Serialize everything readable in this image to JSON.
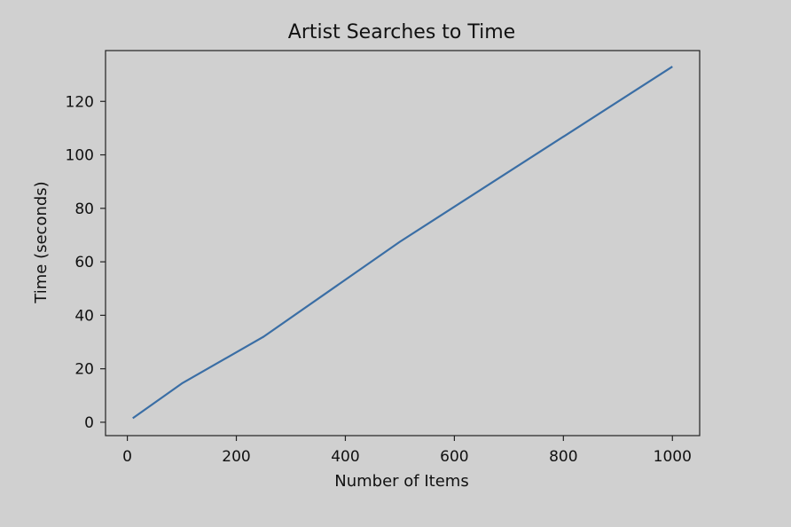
{
  "chart_data": {
    "type": "line",
    "title": "Artist Searches to Time",
    "xlabel": "Number of Items",
    "ylabel": "Time (seconds)",
    "xlim": [
      -40,
      1050
    ],
    "ylim": [
      -5,
      139
    ],
    "xticks": [
      0,
      200,
      400,
      600,
      800,
      1000
    ],
    "yticks": [
      0,
      20,
      40,
      60,
      80,
      100,
      120
    ],
    "grid": false,
    "line_color": "#3a6ea5",
    "series": [
      {
        "x": [
          10,
          100,
          250,
          500,
          1000
        ],
        "values": [
          1.5,
          14.5,
          32,
          67.5,
          133
        ]
      }
    ]
  }
}
